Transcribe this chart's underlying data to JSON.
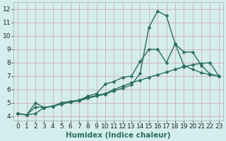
{
  "line1_x": [
    0,
    1,
    2,
    3,
    4,
    5,
    6,
    7,
    8,
    9,
    10,
    11,
    12,
    13,
    14,
    15,
    16,
    17,
    18,
    19,
    20,
    21,
    22,
    23
  ],
  "line1_y": [
    4.2,
    4.1,
    4.7,
    4.65,
    4.75,
    5.0,
    5.1,
    5.2,
    5.4,
    5.55,
    5.7,
    6.0,
    6.25,
    6.5,
    6.7,
    6.9,
    7.1,
    7.3,
    7.5,
    7.7,
    7.85,
    7.95,
    8.0,
    7.0
  ],
  "line2_x": [
    0,
    1,
    2,
    3,
    4,
    5,
    6,
    7,
    8,
    9,
    10,
    11,
    12,
    13,
    14,
    15,
    16,
    17,
    18,
    19,
    20,
    21,
    22,
    23
  ],
  "line2_y": [
    4.2,
    4.1,
    5.0,
    4.65,
    4.75,
    5.0,
    5.1,
    5.2,
    5.5,
    5.7,
    6.4,
    6.6,
    6.9,
    7.0,
    8.1,
    9.0,
    9.0,
    8.0,
    9.4,
    8.8,
    8.8,
    7.8,
    7.15,
    7.0
  ],
  "line3_x": [
    0,
    1,
    2,
    3,
    4,
    5,
    6,
    7,
    8,
    9,
    10,
    11,
    12,
    13,
    14,
    15,
    16,
    17,
    18,
    19,
    20,
    21,
    22,
    23
  ],
  "line3_y": [
    4.2,
    4.1,
    4.2,
    4.65,
    4.75,
    4.9,
    5.05,
    5.15,
    5.35,
    5.5,
    5.65,
    5.9,
    6.1,
    6.35,
    7.2,
    10.65,
    11.85,
    11.5,
    9.4,
    7.8,
    7.5,
    7.25,
    7.1,
    7.0
  ],
  "xlabel": "Humidex (Indice chaleur)",
  "xlim": [
    -0.5,
    23.5
  ],
  "ylim": [
    3.7,
    12.5
  ],
  "yticks": [
    4,
    5,
    6,
    7,
    8,
    9,
    10,
    11,
    12
  ],
  "xticks": [
    0,
    1,
    2,
    3,
    4,
    5,
    6,
    7,
    8,
    9,
    10,
    11,
    12,
    13,
    14,
    15,
    16,
    17,
    18,
    19,
    20,
    21,
    22,
    23
  ],
  "bg_color": "#d4eeed",
  "grid_color": "#d4a0a8",
  "line_color": "#2a6e5e",
  "marker_color": "#2a6e5e",
  "xlabel_fontsize": 7.5,
  "tick_fontsize": 6.5,
  "linewidth": 1.0,
  "markersize": 2.5
}
